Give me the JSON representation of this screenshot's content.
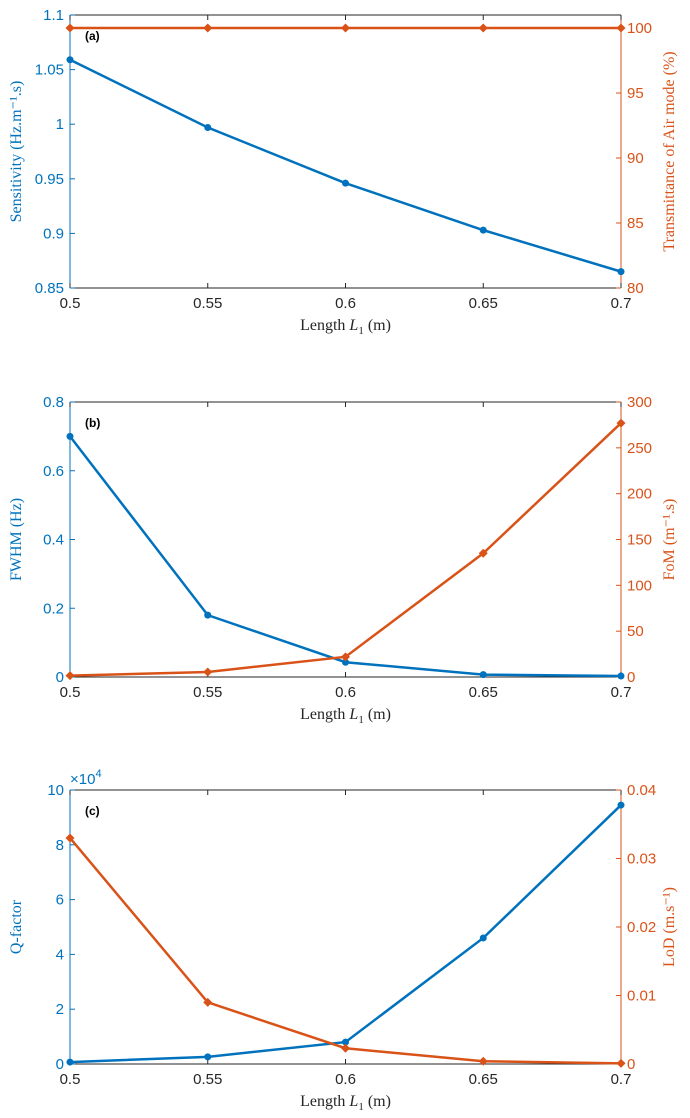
{
  "colors": {
    "blue": "#0072BD",
    "orange": "#D95319",
    "axis": "#262626"
  },
  "chart_data": [
    {
      "type": "line",
      "panel_label": "(a)",
      "x": [
        0.5,
        0.55,
        0.6,
        0.65,
        0.7
      ],
      "xlabel_prefix": "Length ",
      "xlabel_var": "L",
      "xlabel_sub": "1",
      "xlabel_suffix": " (m)",
      "xlim": [
        0.5,
        0.7
      ],
      "xticks": [
        "0.5",
        "0.55",
        "0.6",
        "0.65",
        "0.7"
      ],
      "left": {
        "label": "Sensitivity (Hz.m⁻¹.s)",
        "ylim": [
          0.85,
          1.1
        ],
        "yticks": [
          "0.85",
          "0.9",
          "0.95",
          "1",
          "1.05",
          "1.1"
        ],
        "values": [
          1.059,
          0.997,
          0.946,
          0.903,
          0.865
        ],
        "marker": "circle",
        "color": "#0072BD"
      },
      "right": {
        "label": "Transmittance of Air mode (%)",
        "ylim": [
          80,
          101
        ],
        "yticks": [
          "80",
          "85",
          "90",
          "95",
          "100"
        ],
        "values": [
          100,
          100,
          100,
          100,
          100
        ],
        "marker": "diamond",
        "color": "#D95319"
      }
    },
    {
      "type": "line",
      "panel_label": "(b)",
      "x": [
        0.5,
        0.55,
        0.6,
        0.65,
        0.7
      ],
      "xlabel_prefix": "Length ",
      "xlabel_var": "L",
      "xlabel_sub": "1",
      "xlabel_suffix": " (m)",
      "xlim": [
        0.5,
        0.7
      ],
      "xticks": [
        "0.5",
        "0.55",
        "0.6",
        "0.65",
        "0.7"
      ],
      "left": {
        "label": "FWHM (Hz)",
        "ylim": [
          0,
          0.8
        ],
        "yticks": [
          "0",
          "0.2",
          "0.4",
          "0.6",
          "0.8"
        ],
        "values": [
          0.7,
          0.18,
          0.043,
          0.007,
          0.003
        ],
        "marker": "circle",
        "color": "#0072BD"
      },
      "right": {
        "label": "FoM (m⁻¹.s)",
        "ylim": [
          0,
          300
        ],
        "yticks": [
          "0",
          "50",
          "100",
          "150",
          "200",
          "250",
          "300"
        ],
        "values": [
          1.5,
          5.5,
          22,
          135,
          277
        ],
        "marker": "diamond",
        "color": "#D95319"
      }
    },
    {
      "type": "line",
      "panel_label": "(c)",
      "x": [
        0.5,
        0.55,
        0.6,
        0.65,
        0.7
      ],
      "xlabel_prefix": "Length ",
      "xlabel_var": "L",
      "xlabel_sub": "1",
      "xlabel_suffix": " (m)",
      "xlim": [
        0.5,
        0.7
      ],
      "xticks": [
        "0.5",
        "0.55",
        "0.6",
        "0.65",
        "0.7"
      ],
      "left": {
        "label": "Q-factor",
        "exponent_base": "×10",
        "exponent": "4",
        "ylim": [
          0,
          10
        ],
        "yticks": [
          "0",
          "2",
          "4",
          "6",
          "8",
          "10"
        ],
        "values": [
          0.07,
          0.26,
          0.8,
          4.6,
          9.45
        ],
        "marker": "circle",
        "color": "#0072BD"
      },
      "right": {
        "label": "LoD (m.s⁻¹)",
        "ylim": [
          0,
          0.04
        ],
        "yticks": [
          "0",
          "0.01",
          "0.02",
          "0.03",
          "0.04"
        ],
        "values": [
          0.033,
          0.009,
          0.0023,
          0.0004,
          0.0001
        ],
        "marker": "diamond",
        "color": "#D95319"
      }
    }
  ]
}
